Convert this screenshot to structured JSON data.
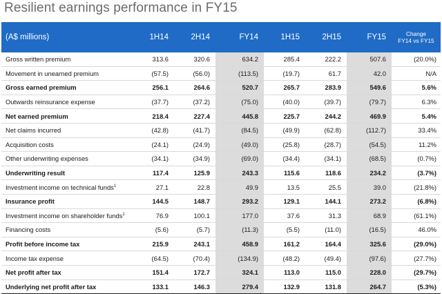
{
  "title": "Resilient earnings performance in FY15",
  "table": {
    "columns": {
      "label": "(A$ millions)",
      "h1_14": "1H14",
      "h2_14": "2H14",
      "fy14": "FY14",
      "h1_15": "1H15",
      "h2_15": "2H15",
      "fy15": "FY15",
      "change_line1": "Change",
      "change_line2": "FY14 vs FY15"
    },
    "rows": [
      {
        "label": "Gross written premium",
        "sup": "",
        "bold": false,
        "values": [
          "313.6",
          "320.6",
          "634.2",
          "285.4",
          "222.2",
          "507.6",
          "(20.0%)"
        ]
      },
      {
        "label": "Movement in unearned premium",
        "sup": "",
        "bold": false,
        "values": [
          "(57.5)",
          "(56.0)",
          "(113.5)",
          "(19.7)",
          "61.7",
          "42.0",
          "N/A"
        ]
      },
      {
        "label": "Gross earned premium",
        "sup": "",
        "bold": true,
        "values": [
          "256.1",
          "264.6",
          "520.7",
          "265.7",
          "283.9",
          "549.6",
          "5.6%"
        ]
      },
      {
        "label": "Outwards reinsurance expense",
        "sup": "",
        "bold": false,
        "values": [
          "(37.7)",
          "(37.2)",
          "(75.0)",
          "(40.0)",
          "(39.7)",
          "(79.7)",
          "6.3%"
        ]
      },
      {
        "label": "Net earned premium",
        "sup": "",
        "bold": true,
        "values": [
          "218.4",
          "227.4",
          "445.8",
          "225.7",
          "244.2",
          "469.9",
          "5.4%"
        ]
      },
      {
        "label": "Net claims incurred",
        "sup": "",
        "bold": false,
        "values": [
          "(42.8)",
          "(41.7)",
          "(84.5)",
          "(49.9)",
          "(62.8)",
          "(112.7)",
          "33.4%"
        ]
      },
      {
        "label": "Acquisition costs",
        "sup": "",
        "bold": false,
        "values": [
          "(24.1)",
          "(24.9)",
          "(49.0)",
          "(25.8)",
          "(28.7)",
          "(54.5)",
          "11.2%"
        ]
      },
      {
        "label": "Other underwriting expenses",
        "sup": "",
        "bold": false,
        "values": [
          "(34.1)",
          "(34.9)",
          "(69.0)",
          "(34.4)",
          "(34.1)",
          "(68.5)",
          "(0.7%)"
        ]
      },
      {
        "label": "Underwriting result",
        "sup": "",
        "bold": true,
        "values": [
          "117.4",
          "125.9",
          "243.3",
          "115.6",
          "118.6",
          "234.2",
          "(3.7%)"
        ]
      },
      {
        "label": "Investment income on technical funds",
        "sup": "1",
        "bold": false,
        "values": [
          "27.1",
          "22.8",
          "49.9",
          "13.5",
          "25.5",
          "39.0",
          "(21.8%)"
        ]
      },
      {
        "label": "Insurance profit",
        "sup": "",
        "bold": true,
        "values": [
          "144.5",
          "148.7",
          "293.2",
          "129.1",
          "144.1",
          "273.2",
          "(6.8%)"
        ]
      },
      {
        "label": "Investment income on shareholder funds",
        "sup": "1",
        "bold": false,
        "values": [
          "76.9",
          "100.1",
          "177.0",
          "37.6",
          "31.3",
          "68.9",
          "(61.1%)"
        ]
      },
      {
        "label": "Financing costs",
        "sup": "",
        "bold": false,
        "values": [
          "(5.6)",
          "(5.7)",
          "(11.3)",
          "(5.5)",
          "(11.0)",
          "(16.5)",
          "46.0%"
        ]
      },
      {
        "label": "Profit before income tax",
        "sup": "",
        "bold": true,
        "values": [
          "215.9",
          "243.1",
          "458.9",
          "161.2",
          "164.4",
          "325.6",
          "(29.0%)"
        ]
      },
      {
        "label": "Income tax expense",
        "sup": "",
        "bold": false,
        "values": [
          "(64.5)",
          "(70.4)",
          "(134.9)",
          "(48.2)",
          "(49.4)",
          "(97.6)",
          "(27.7%)"
        ]
      },
      {
        "label": "Net profit after tax",
        "sup": "",
        "bold": true,
        "values": [
          "151.4",
          "172.7",
          "324.1",
          "113.0",
          "115.0",
          "228.0",
          "(29.7%)"
        ]
      },
      {
        "label": "Underlying net profit after tax",
        "sup": "",
        "bold": true,
        "values": [
          "133.1",
          "146.3",
          "279.4",
          "132.9",
          "131.8",
          "264.7",
          "(5.3%)"
        ]
      }
    ]
  }
}
